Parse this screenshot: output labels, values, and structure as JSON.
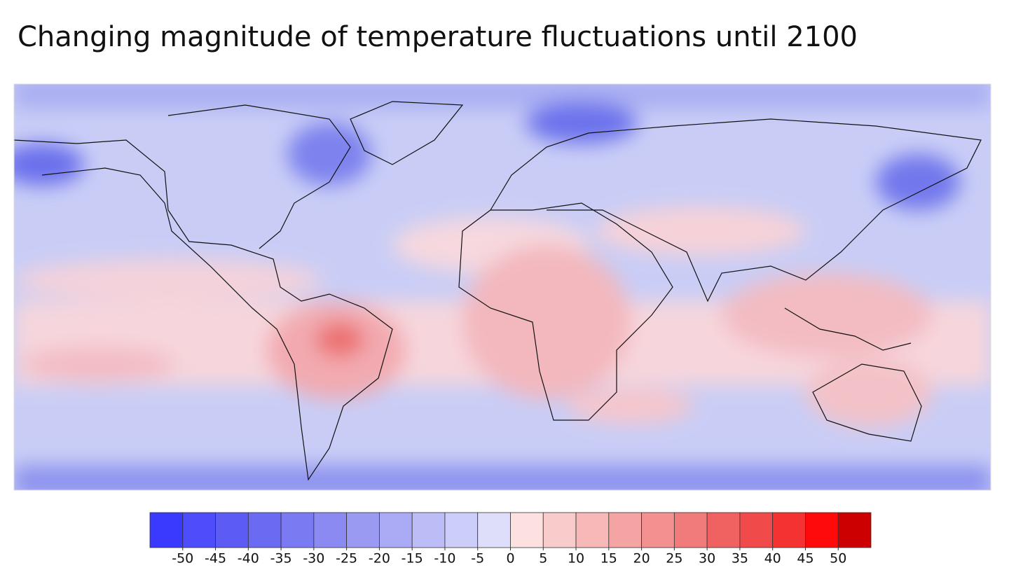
{
  "title": "Changing magnitude of temperature fluctuations until 2100",
  "colorbar": {
    "ticks": [
      -50,
      -45,
      -40,
      -35,
      -30,
      -25,
      -20,
      -15,
      -10,
      -5,
      0,
      5,
      10,
      15,
      20,
      25,
      30,
      35,
      40,
      45,
      50
    ],
    "colors": [
      "#3a3aff",
      "#4d4dfb",
      "#5c5cf5",
      "#6a6af2",
      "#7a7af2",
      "#8a8af2",
      "#9a9af3",
      "#ababf5",
      "#bcbcf7",
      "#cdcdf9",
      "#dedefb",
      "#fde0e0",
      "#f9cccc",
      "#f7b8b8",
      "#f5a4a4",
      "#f39090",
      "#f17a7a",
      "#f06262",
      "#f14a4a",
      "#f53232",
      "#ff0a0a",
      "#cc0000"
    ]
  }
}
